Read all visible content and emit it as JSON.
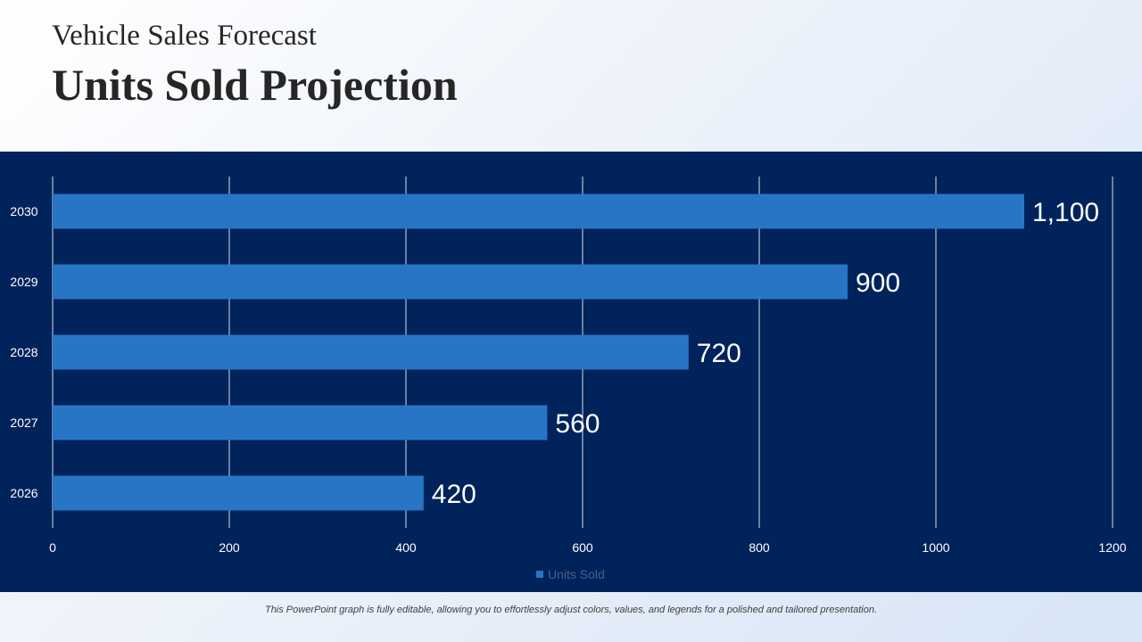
{
  "header": {
    "subtitle": "Vehicle Sales Forecast",
    "title": "Units Sold Projection"
  },
  "footer": {
    "note": "This PowerPoint graph is fully editable, allowing you to effortlessly adjust colors, values, and legends for a polished and tailored presentation."
  },
  "colors": {
    "panel_background": "#00235c",
    "bar": "#2875c6",
    "gridline": "#ffffff",
    "label_text": "#ffffff",
    "legend_text": "#4a5f86"
  },
  "chart_data": {
    "type": "bar",
    "orientation": "horizontal",
    "categories": [
      "2026",
      "2027",
      "2028",
      "2029",
      "2030"
    ],
    "series": [
      {
        "name": "Units Sold",
        "values": [
          420,
          560,
          720,
          900,
          1100
        ],
        "data_labels": [
          "420",
          "560",
          "720",
          "900",
          "1,100"
        ]
      }
    ],
    "xlim": [
      0,
      1200
    ],
    "x_ticks": [
      "0",
      "200",
      "400",
      "600",
      "800",
      "1000",
      "1200"
    ],
    "grid": true,
    "legend_position": "bottom"
  }
}
